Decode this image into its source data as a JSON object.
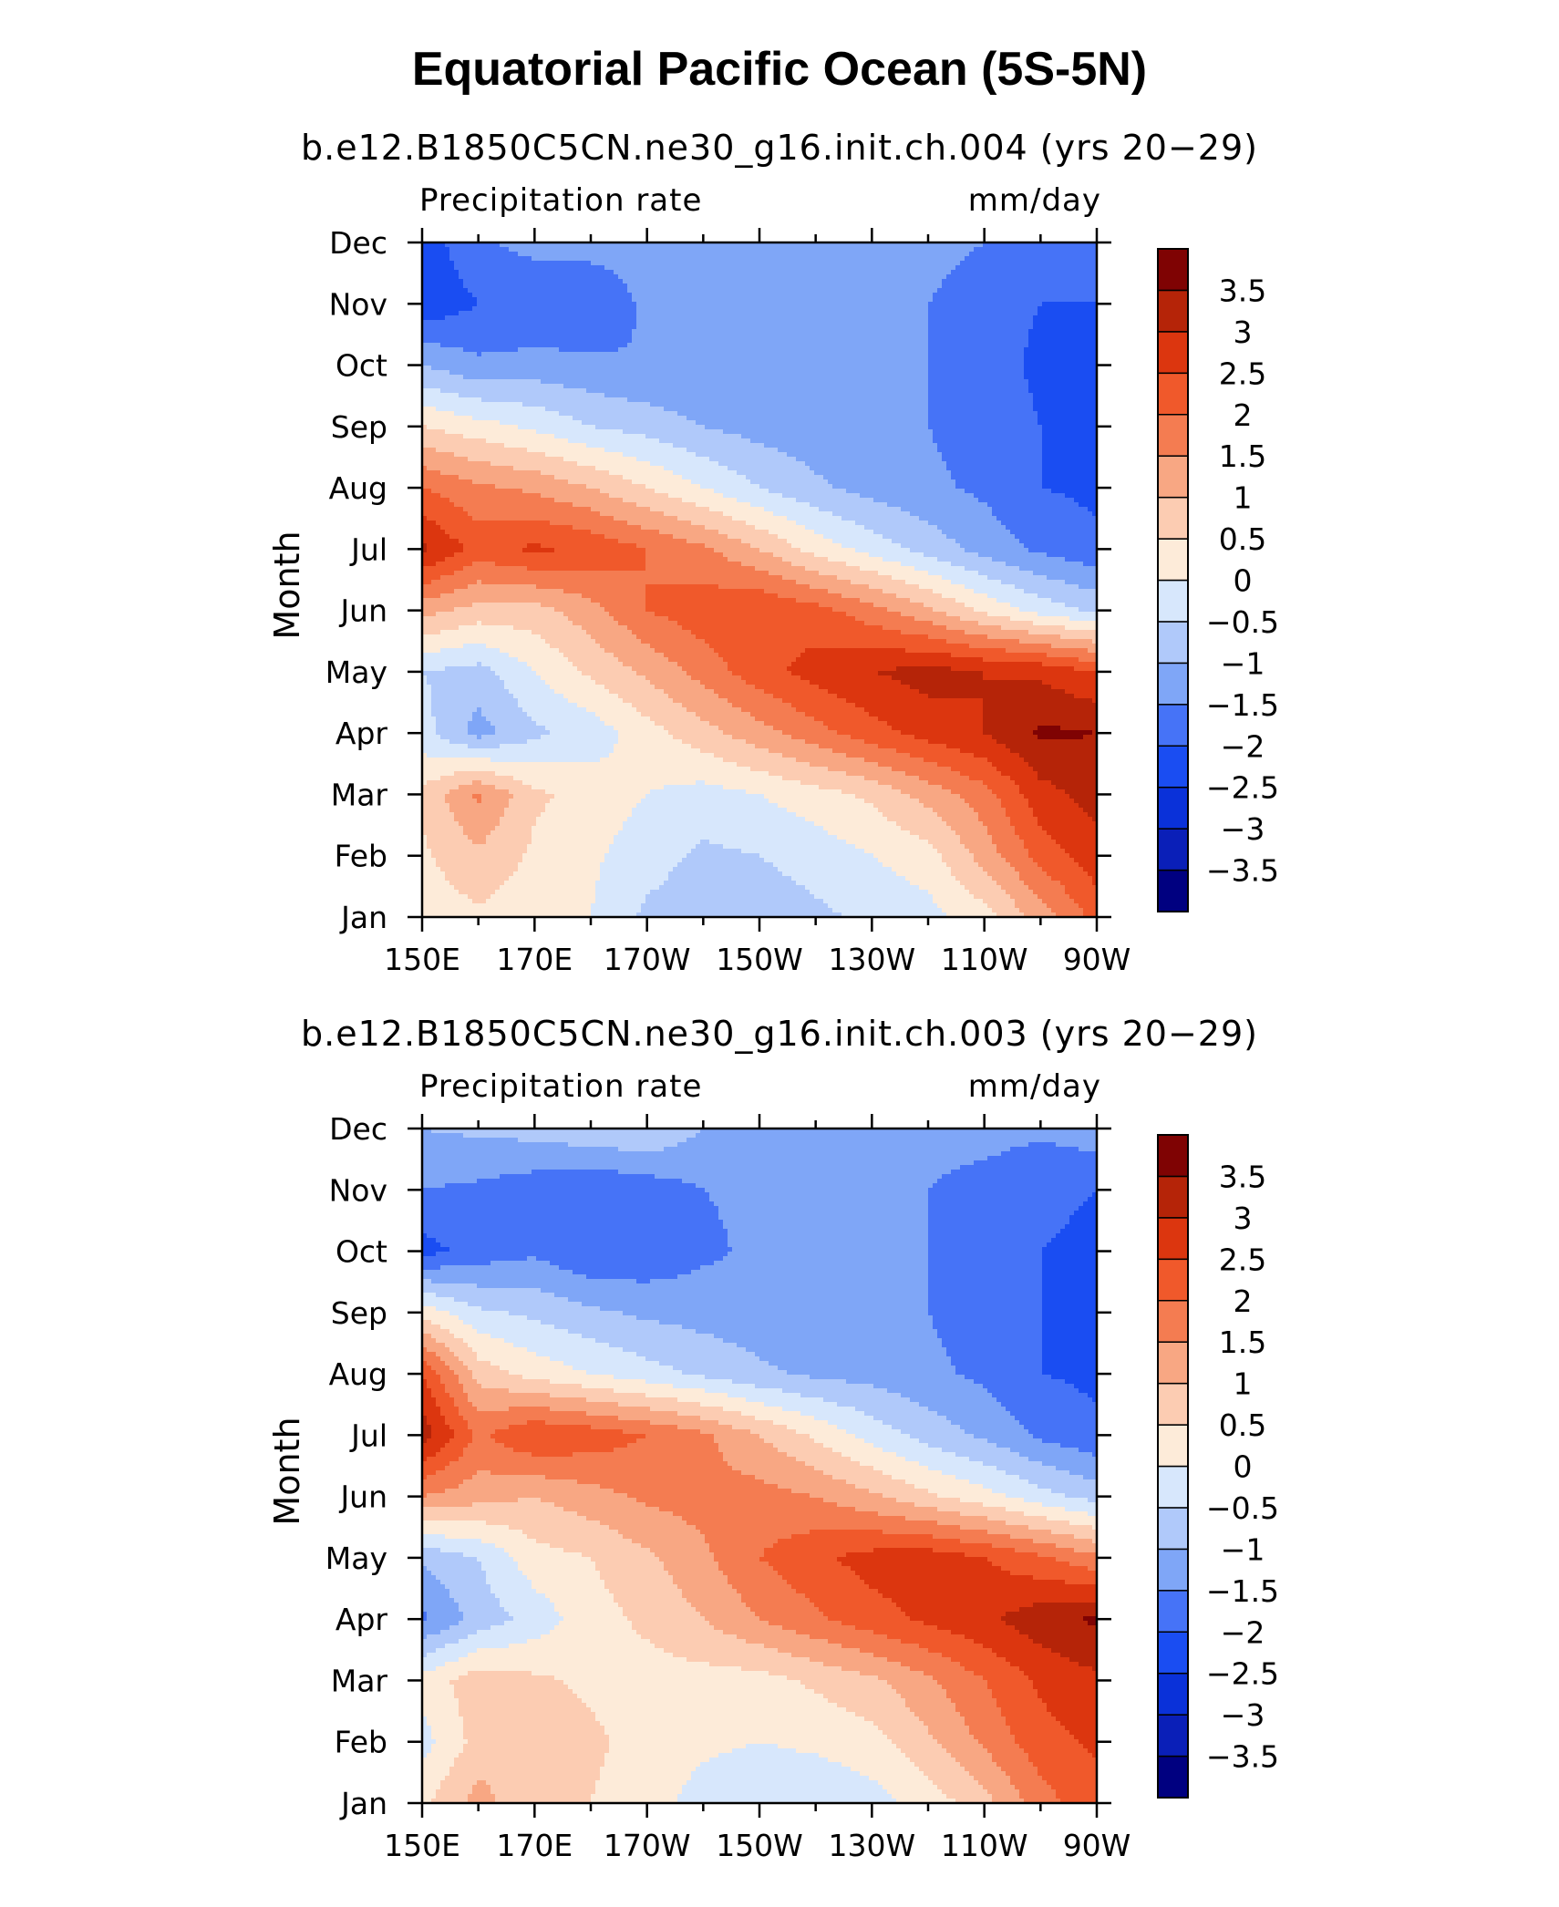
{
  "title": "Equatorial Pacific Ocean (5S-5N)",
  "chart_data": [
    {
      "type": "heatmap",
      "title": "b.e12.B1850C5CN.ne30_g16.init.ch.004 (yrs 20−29)",
      "left_string": "Precipitation rate",
      "units": "mm/day",
      "xlabel": "",
      "ylabel": "Month",
      "x_ticks": [
        "150E",
        "170E",
        "170W",
        "150W",
        "130W",
        "110W",
        "90W"
      ],
      "y_ticks": [
        "Jan",
        "Feb",
        "Mar",
        "Apr",
        "May",
        "Jun",
        "Jul",
        "Aug",
        "Sep",
        "Oct",
        "Nov",
        "Dec"
      ],
      "x_lon": [
        150,
        160,
        170,
        180,
        190,
        200,
        210,
        220,
        230,
        240,
        250,
        260,
        270
      ],
      "months": [
        "Jan",
        "Feb",
        "Mar",
        "Apr",
        "May",
        "Jun",
        "Jul",
        "Aug",
        "Sep",
        "Oct",
        "Nov",
        "Dec"
      ],
      "values": [
        [
          0.2,
          0.4,
          0.2,
          0.0,
          -0.6,
          -0.8,
          -0.8,
          -0.6,
          -0.4,
          -0.2,
          0.3,
          1.2,
          2.2
        ],
        [
          0.4,
          0.9,
          0.4,
          0.1,
          -0.3,
          -0.6,
          -0.5,
          -0.3,
          0.0,
          0.3,
          1.2,
          2.2,
          2.8
        ],
        [
          0.6,
          1.6,
          0.6,
          0.3,
          0.0,
          -0.2,
          0.0,
          0.3,
          0.6,
          1.2,
          1.8,
          2.8,
          3.2
        ],
        [
          -0.3,
          -1.2,
          -0.6,
          -0.3,
          0.3,
          0.8,
          1.3,
          1.8,
          2.3,
          2.7,
          3.0,
          3.6,
          3.5
        ],
        [
          -0.5,
          -0.7,
          0.0,
          0.6,
          1.1,
          1.7,
          2.3,
          2.7,
          3.0,
          3.2,
          3.0,
          2.9,
          2.5
        ],
        [
          1.2,
          0.8,
          0.8,
          1.3,
          2.0,
          2.3,
          2.5,
          2.2,
          1.7,
          1.1,
          0.4,
          -0.2,
          -0.6
        ],
        [
          3.1,
          2.3,
          2.6,
          2.4,
          2.0,
          1.6,
          1.0,
          0.3,
          -0.2,
          -0.7,
          -1.2,
          -1.6,
          -1.9
        ],
        [
          2.0,
          1.6,
          1.4,
          1.0,
          0.5,
          0.0,
          -0.5,
          -0.9,
          -1.2,
          -1.4,
          -1.6,
          -2.0,
          -2.1
        ],
        [
          0.5,
          0.2,
          -0.1,
          -0.5,
          -0.7,
          -1.0,
          -1.2,
          -1.3,
          -1.4,
          -1.5,
          -1.7,
          -2.0,
          -2.1
        ],
        [
          -1.0,
          -1.4,
          -1.3,
          -1.4,
          -1.5,
          -1.5,
          -1.4,
          -1.4,
          -1.4,
          -1.5,
          -1.8,
          -2.1,
          -2.1
        ],
        [
          -2.4,
          -2.0,
          -2.0,
          -1.9,
          -1.4,
          -1.3,
          -1.4,
          -1.4,
          -1.4,
          -1.5,
          -1.8,
          -2.0,
          -2.0
        ],
        [
          -2.3,
          -1.6,
          -1.3,
          -1.3,
          -1.3,
          -1.3,
          -1.3,
          -1.3,
          -1.3,
          -1.3,
          -1.5,
          -1.8,
          -1.6
        ]
      ],
      "colorbar_labels": [
        "3.5",
        "3",
        "2.5",
        "2",
        "1.5",
        "1",
        "0.5",
        "0",
        "−0.5",
        "−1",
        "−1.5",
        "−2",
        "−2.5",
        "−3",
        "−3.5"
      ]
    },
    {
      "type": "heatmap",
      "title": "b.e12.B1850C5CN.ne30_g16.init.ch.003 (yrs 20−29)",
      "left_string": "Precipitation rate",
      "units": "mm/day",
      "xlabel": "",
      "ylabel": "Month",
      "x_ticks": [
        "150E",
        "170E",
        "170W",
        "150W",
        "130W",
        "110W",
        "90W"
      ],
      "y_ticks": [
        "Jan",
        "Feb",
        "Mar",
        "Apr",
        "May",
        "Jun",
        "Jul",
        "Aug",
        "Sep",
        "Oct",
        "Nov",
        "Dec"
      ],
      "x_lon": [
        150,
        160,
        170,
        180,
        190,
        200,
        210,
        220,
        230,
        240,
        250,
        260,
        270
      ],
      "months": [
        "Jan",
        "Feb",
        "Mar",
        "Apr",
        "May",
        "Jun",
        "Jul",
        "Aug",
        "Sep",
        "Oct",
        "Nov",
        "Dec"
      ],
      "values": [
        [
          0.4,
          1.2,
          0.6,
          0.5,
          0.2,
          -0.2,
          -0.4,
          -0.4,
          -0.2,
          0.2,
          0.8,
          1.8,
          2.3
        ],
        [
          -0.2,
          0.7,
          0.9,
          0.6,
          0.3,
          0.1,
          0.0,
          0.1,
          0.3,
          0.9,
          1.6,
          2.3,
          2.6
        ],
        [
          0.2,
          0.8,
          0.6,
          0.4,
          0.3,
          0.3,
          0.3,
          0.6,
          0.9,
          1.4,
          2.0,
          2.6,
          2.9
        ],
        [
          -1.6,
          -0.8,
          -0.3,
          0.3,
          0.6,
          1.0,
          1.5,
          1.9,
          2.3,
          2.6,
          2.9,
          3.3,
          3.6
        ],
        [
          -0.9,
          -0.5,
          0.3,
          0.5,
          0.9,
          1.4,
          2.0,
          2.4,
          2.7,
          2.8,
          2.5,
          2.1,
          1.6
        ],
        [
          1.5,
          1.2,
          1.0,
          1.3,
          1.6,
          1.7,
          1.7,
          1.5,
          1.1,
          0.6,
          0.2,
          -0.3,
          -0.7
        ],
        [
          3.3,
          1.9,
          2.5,
          2.3,
          2.0,
          1.6,
          1.0,
          0.4,
          -0.2,
          -0.7,
          -1.1,
          -1.6,
          -1.9
        ],
        [
          2.5,
          0.8,
          0.3,
          0.0,
          -0.3,
          -0.6,
          -0.9,
          -1.1,
          -1.2,
          -1.4,
          -1.6,
          -2.0,
          -2.1
        ],
        [
          0.3,
          -0.4,
          -0.6,
          -0.9,
          -1.1,
          -1.2,
          -1.3,
          -1.3,
          -1.4,
          -1.5,
          -1.7,
          -2.0,
          -2.1
        ],
        [
          -2.2,
          -1.8,
          -1.6,
          -2.0,
          -1.9,
          -1.6,
          -1.4,
          -1.4,
          -1.4,
          -1.5,
          -1.8,
          -2.0,
          -2.1
        ],
        [
          -1.5,
          -1.6,
          -1.8,
          -2.0,
          -1.8,
          -1.5,
          -1.4,
          -1.4,
          -1.4,
          -1.5,
          -1.7,
          -1.9,
          -2.0
        ],
        [
          -1.0,
          -0.9,
          -0.8,
          -0.6,
          -0.5,
          -1.0,
          -1.2,
          -1.3,
          -1.3,
          -1.3,
          -1.3,
          -1.4,
          -1.2
        ]
      ],
      "colorbar_labels": [
        "3.5",
        "3",
        "2.5",
        "2",
        "1.5",
        "1",
        "0.5",
        "0",
        "−0.5",
        "−1",
        "−1.5",
        "−2",
        "−2.5",
        "−3",
        "−3.5"
      ]
    }
  ],
  "colors": {
    "levels_bottom_to_top": [
      "#000080",
      "#0a1fb8",
      "#0a31d9",
      "#1a4df2",
      "#4673f7",
      "#7fa6f7",
      "#b0c9fa",
      "#d7e7fc",
      "#fdebd9",
      "#fcccb2",
      "#f8a783",
      "#f47c51",
      "#f0592b",
      "#dc360f",
      "#b52408",
      "#7f0303"
    ]
  }
}
